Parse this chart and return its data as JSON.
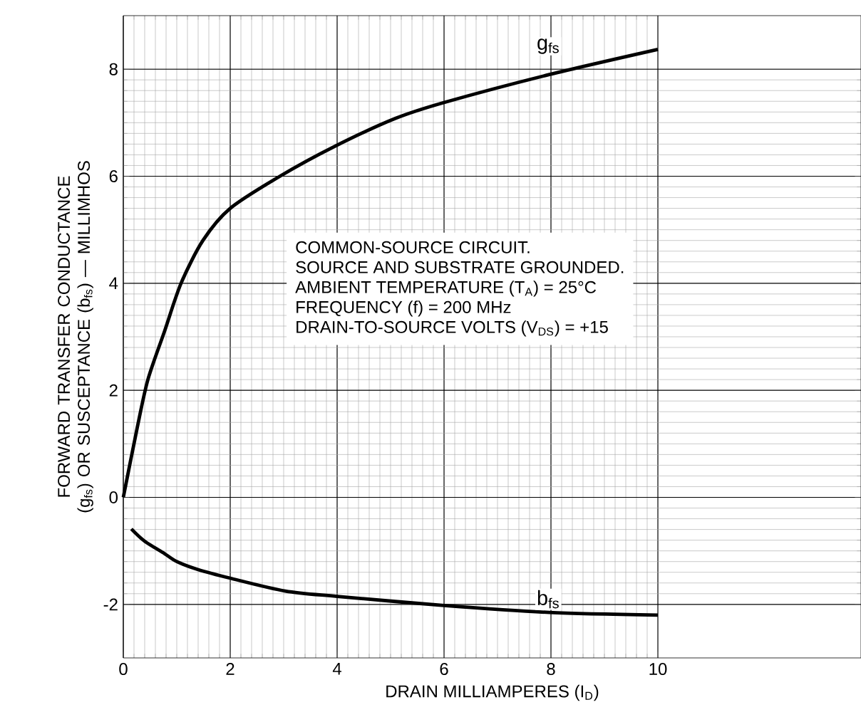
{
  "chart_data": {
    "type": "line",
    "xlabel": "DRAIN MILLIAMPERES (I$_{D}$)",
    "ylabel": "FORWARD TRANSFER CONDUCTANCE (g$_{fs}$) OR SUSCEPTANCE (b$_{fs}$) — MILLIMHOS",
    "xlim": [
      0,
      13.8
    ],
    "ylim": [
      -3,
      9
    ],
    "xticks": [
      0,
      2,
      4,
      6,
      8,
      10
    ],
    "yticks": [
      -2,
      0,
      2,
      4,
      6,
      8
    ],
    "grid": true,
    "marker": "none",
    "line_style": "solid",
    "series": [
      {
        "name": "g$_{fs}$",
        "color": "#000000",
        "x": [
          0,
          0.26,
          0.46,
          0.77,
          1.08,
          1.49,
          2.0,
          2.93,
          3.96,
          5.09,
          6.01,
          7.97,
          10
        ],
        "values": [
          0,
          1.3,
          2.2,
          3.1,
          4.0,
          4.8,
          5.4,
          6.0,
          6.56,
          7.08,
          7.38,
          7.9,
          8.37
        ]
      },
      {
        "name": "b$_{fs}$",
        "color": "#000000",
        "x": [
          0.15,
          0.4,
          0.77,
          1.0,
          1.4,
          2.0,
          3.03,
          4.0,
          6.0,
          7.97,
          10
        ],
        "values": [
          -0.59,
          -0.82,
          -1.05,
          -1.2,
          -1.35,
          -1.51,
          -1.75,
          -1.85,
          -2.02,
          -2.15,
          -2.2
        ]
      }
    ],
    "annotations": [
      "COMMON-SOURCE CIRCUIT.",
      "SOURCE AND SUBSTRATE GROUNDED.",
      "AMBIENT TEMPERATURE (T$_{A}$) = 25°C",
      "FREQUENCY (f) = 200 MHz",
      "DRAIN-TO-SOURCE VOLTS (V$_{DS}$) = +15"
    ]
  }
}
